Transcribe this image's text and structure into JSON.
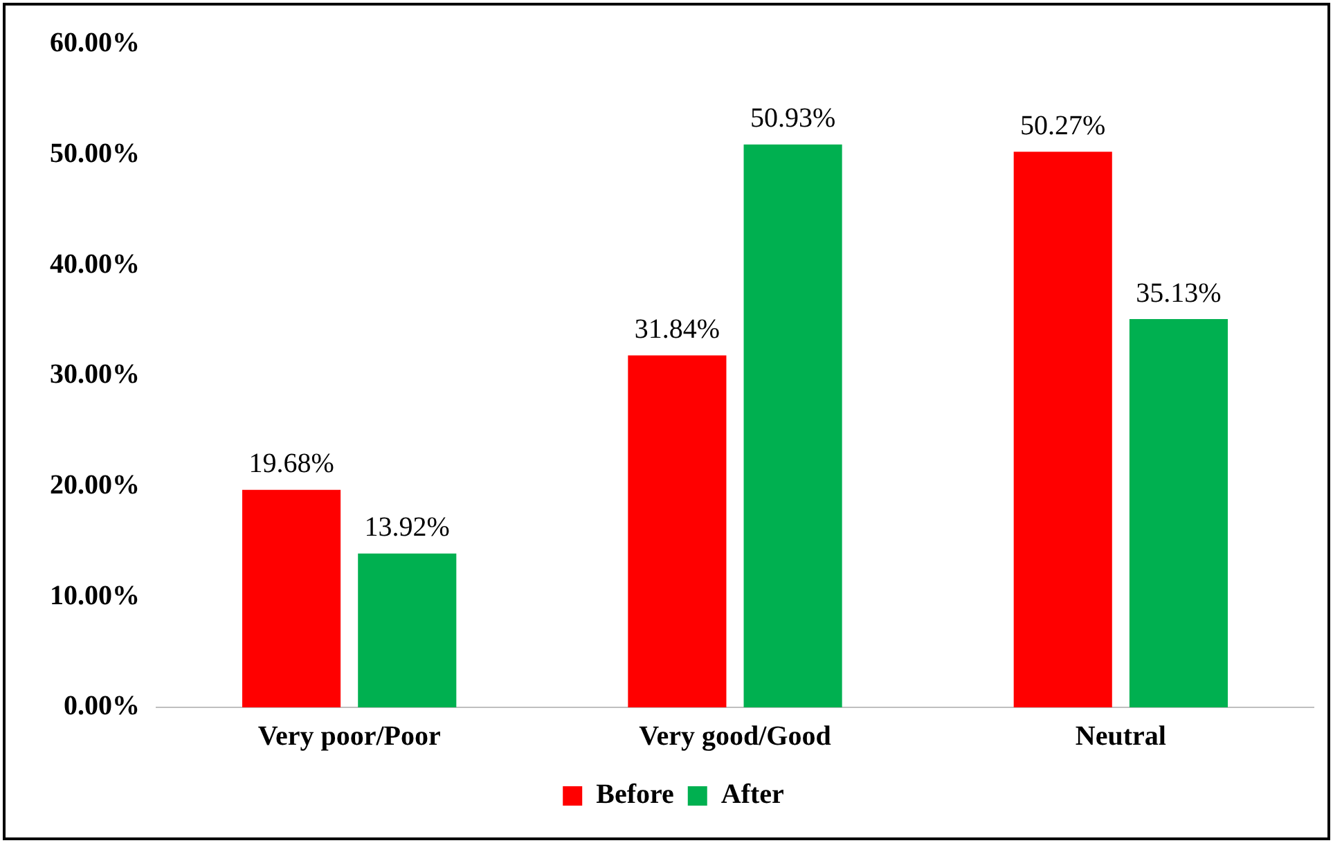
{
  "chart_data": {
    "type": "bar",
    "categories": [
      "Very poor/Poor",
      "Very good/Good",
      "Neutral"
    ],
    "series": [
      {
        "name": "Before",
        "color": "#ff0000",
        "values": [
          19.68,
          31.84,
          50.27
        ],
        "value_labels": [
          "19.68%",
          "31.84%",
          "50.27%"
        ]
      },
      {
        "name": "After",
        "color": "#00b050",
        "values": [
          13.92,
          50.93,
          35.13
        ],
        "value_labels": [
          "13.92%",
          "50.93%",
          "35.13%"
        ]
      }
    ],
    "ylim": [
      0,
      60
    ],
    "yticks": [
      {
        "value": 0,
        "label": "0.00%"
      },
      {
        "value": 10,
        "label": "10.00%"
      },
      {
        "value": 20,
        "label": "20.00%"
      },
      {
        "value": 30,
        "label": "30.00%"
      },
      {
        "value": 40,
        "label": "40.00%"
      },
      {
        "value": 50,
        "label": "50.00%"
      },
      {
        "value": 60,
        "label": "60.00%"
      }
    ],
    "grid": false,
    "legend": "bottom"
  }
}
